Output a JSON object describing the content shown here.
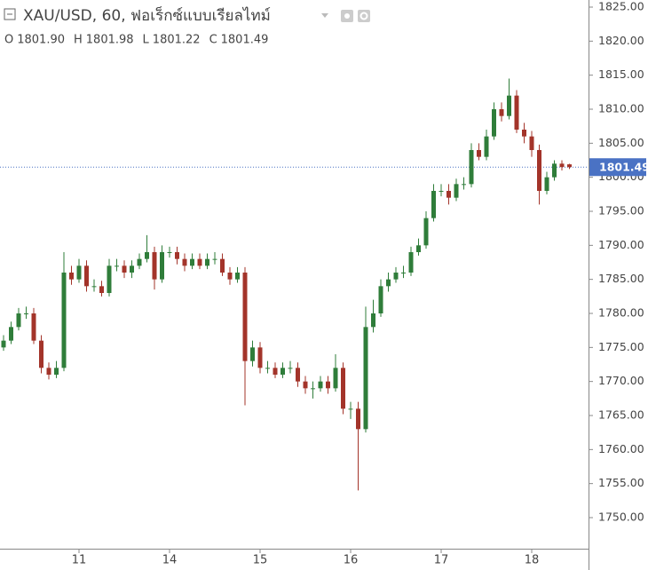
{
  "chart_data": {
    "type": "candlestick",
    "title": "XAU/USD, 60, ฟอเร็กซ์แบบเรียลไทม์",
    "ohlc_legend": [
      {
        "key": "O",
        "value": "1801.90"
      },
      {
        "key": "H",
        "value": "1801.98"
      },
      {
        "key": "L",
        "value": "1801.22"
      },
      {
        "key": "C",
        "value": "1801.49"
      }
    ],
    "categories": [
      null,
      null,
      null,
      null,
      null,
      null,
      null,
      null,
      null,
      null,
      "11",
      null,
      null,
      null,
      null,
      null,
      null,
      null,
      null,
      null,
      null,
      null,
      "14",
      null,
      null,
      null,
      null,
      null,
      null,
      null,
      null,
      null,
      null,
      null,
      "15",
      null,
      null,
      null,
      null,
      null,
      null,
      null,
      null,
      null,
      null,
      null,
      "16",
      null,
      null,
      null,
      null,
      null,
      null,
      null,
      null,
      null,
      null,
      null,
      "17",
      null,
      null,
      null,
      null,
      null,
      null,
      null,
      null,
      null,
      null,
      null,
      "18",
      null,
      null,
      null,
      null,
      null
    ],
    "open": [
      1775,
      1776,
      1778,
      1780,
      1780,
      1776,
      1772,
      1771,
      1772,
      1786,
      1785,
      1787,
      1784,
      1784,
      1783,
      1787,
      1787,
      1786,
      1787,
      1788,
      1789,
      1785,
      1789,
      1789,
      1788,
      1787,
      1788,
      1787,
      1788,
      1788,
      1786,
      1785,
      1786,
      1773,
      1775,
      1772,
      1772,
      1771,
      1772,
      1772,
      1770,
      1769,
      1769,
      1770,
      1769,
      1772,
      1766,
      1766,
      1763,
      1778,
      1780,
      1784,
      1785,
      1786,
      1786,
      1789,
      1790,
      1794,
      1798,
      1798,
      1797,
      1799,
      1799,
      1804,
      1803,
      1806,
      1810,
      1809,
      1812,
      1807,
      1806,
      1804,
      1798,
      1800,
      1802,
      1801.9
    ],
    "high": [
      1776.8,
      1778.8,
      1780.8,
      1781,
      1780.8,
      1776.8,
      1772.8,
      1773,
      1789,
      1787,
      1788,
      1787.8,
      1785,
      1784.8,
      1788,
      1788,
      1787.8,
      1787.8,
      1788.8,
      1791.5,
      1789.8,
      1790,
      1789.8,
      1789.8,
      1788.8,
      1788.8,
      1788.8,
      1788.8,
      1789,
      1788.8,
      1786.8,
      1786.8,
      1786.8,
      1776,
      1775.8,
      1773,
      1772.8,
      1772.8,
      1773,
      1772.8,
      1770.8,
      1770,
      1770.8,
      1770.8,
      1774,
      1772.8,
      1767,
      1767,
      1781,
      1782,
      1785,
      1786,
      1786.8,
      1787,
      1789.8,
      1791,
      1795,
      1799,
      1799,
      1799,
      1799.8,
      1800,
      1805,
      1805,
      1807,
      1811,
      1811,
      1814.5,
      1812.8,
      1808,
      1806.8,
      1804.8,
      1800.8,
      1802.5,
      1802.5,
      1801.98
    ],
    "low": [
      1774.5,
      1775.5,
      1777.5,
      1779.2,
      1775.5,
      1771.2,
      1770.3,
      1770.5,
      1771.5,
      1784.2,
      1784.5,
      1783.2,
      1783.2,
      1782.5,
      1782.5,
      1786.2,
      1785.2,
      1785.2,
      1786.5,
      1787.5,
      1783.5,
      1784.5,
      1788.2,
      1787.2,
      1786.2,
      1786.5,
      1786.5,
      1786.5,
      1787.2,
      1785.5,
      1784.2,
      1784.5,
      1766.5,
      1772.2,
      1771.2,
      1771.2,
      1770.5,
      1770.5,
      1771.2,
      1769.2,
      1768.2,
      1767.5,
      1768.5,
      1768.2,
      1768.5,
      1765.2,
      1764.5,
      1754,
      1762.5,
      1777.2,
      1779.5,
      1783.2,
      1784.5,
      1785.2,
      1785.5,
      1788.5,
      1789.5,
      1793.5,
      1797.2,
      1796,
      1796.5,
      1798.2,
      1798.5,
      1802.5,
      1802.5,
      1805.5,
      1808.2,
      1808.5,
      1806.5,
      1805,
      1803,
      1796,
      1797.5,
      1799.5,
      1801,
      1801.22
    ],
    "close": [
      1776,
      1778,
      1780,
      1780,
      1776,
      1772,
      1771,
      1772,
      1786,
      1785,
      1787,
      1784,
      1784,
      1783,
      1787,
      1787,
      1786,
      1787,
      1788,
      1789,
      1785,
      1789,
      1789,
      1788,
      1787,
      1788,
      1787,
      1788,
      1788,
      1786,
      1785,
      1786,
      1773,
      1775,
      1772,
      1772,
      1771,
      1772,
      1772,
      1770,
      1769,
      1769,
      1770,
      1769,
      1772,
      1766,
      1766,
      1763,
      1778,
      1780,
      1784,
      1785,
      1786,
      1786,
      1789,
      1790,
      1794,
      1798,
      1798,
      1797,
      1799,
      1799,
      1804,
      1803,
      1806,
      1810,
      1809,
      1812,
      1807,
      1806,
      1804,
      1798,
      1800,
      1802,
      1801.5,
      1801.49
    ],
    "up_color": "#2f7d3a",
    "down_color": "#a3342a",
    "last_price": 1801.49,
    "last_price_color": "#4a72c4",
    "ylim": [
      1748,
      1826
    ],
    "yticks": [
      {
        "value": 1750,
        "label": "1750.00"
      },
      {
        "value": 1755,
        "label": "1755.00"
      },
      {
        "value": 1760,
        "label": "1760.00"
      },
      {
        "value": 1765,
        "label": "1765.00"
      },
      {
        "value": 1770,
        "label": "1770.00"
      },
      {
        "value": 1775,
        "label": "1775.00"
      },
      {
        "value": 1780,
        "label": "1780.00"
      },
      {
        "value": 1785,
        "label": "1785.00"
      },
      {
        "value": 1790,
        "label": "1790.00"
      },
      {
        "value": 1795,
        "label": "1795.00"
      },
      {
        "value": 1800,
        "label": "1800.00"
      },
      {
        "value": 1805,
        "label": "1805.00"
      },
      {
        "value": 1810,
        "label": "1810.00"
      },
      {
        "value": 1815,
        "label": "1815.00"
      },
      {
        "value": 1820,
        "label": "1820.00"
      },
      {
        "value": 1825,
        "label": "1825.00"
      }
    ],
    "grid": false
  }
}
